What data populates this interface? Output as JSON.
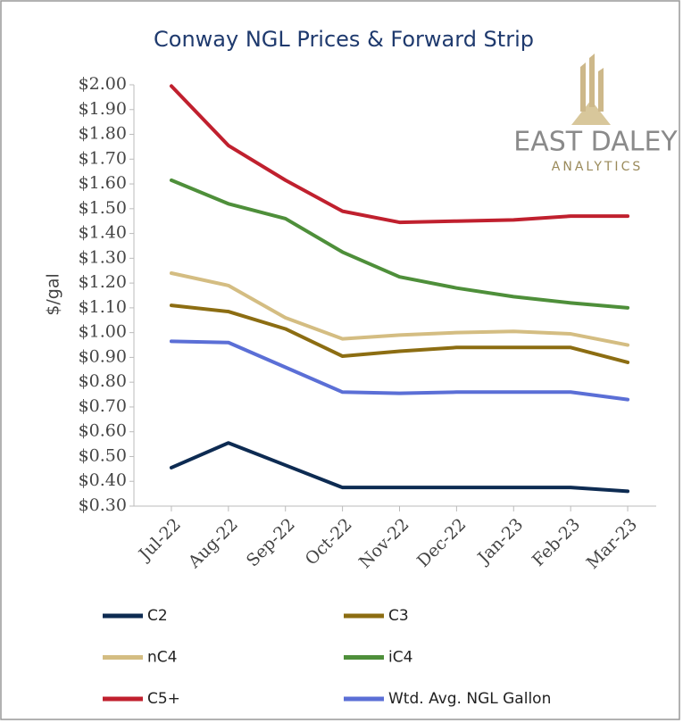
{
  "chart_data": {
    "type": "line",
    "title": "Conway NGL Prices & Forward Strip",
    "y_label": "$/gal",
    "logo": {
      "name": "EAST DALEY",
      "sub": "ANALYTICS"
    },
    "categories": [
      "Jul-22",
      "Aug-22",
      "Sep-22",
      "Oct-22",
      "Nov-22",
      "Dec-22",
      "Jan-23",
      "Feb-23",
      "Mar-23"
    ],
    "ylim": [
      0.3,
      2.0
    ],
    "yticks": [
      {
        "value": 0.3,
        "label": "$0.30"
      },
      {
        "value": 0.4,
        "label": "$0.40"
      },
      {
        "value": 0.5,
        "label": "$0.50"
      },
      {
        "value": 0.6,
        "label": "$0.60"
      },
      {
        "value": 0.7,
        "label": "$0.70"
      },
      {
        "value": 0.8,
        "label": "$0.80"
      },
      {
        "value": 0.9,
        "label": "$0.90"
      },
      {
        "value": 1.0,
        "label": "$1.00"
      },
      {
        "value": 1.1,
        "label": "$1.10"
      },
      {
        "value": 1.2,
        "label": "$1.20"
      },
      {
        "value": 1.3,
        "label": "$1.30"
      },
      {
        "value": 1.4,
        "label": "$1.40"
      },
      {
        "value": 1.5,
        "label": "$1.50"
      },
      {
        "value": 1.6,
        "label": "$1.60"
      },
      {
        "value": 1.7,
        "label": "$1.70"
      },
      {
        "value": 1.8,
        "label": "$1.80"
      },
      {
        "value": 1.9,
        "label": "$1.90"
      },
      {
        "value": 2.0,
        "label": "$2.00"
      }
    ],
    "grid": false,
    "series": [
      {
        "name": "C2",
        "color": "#0d2b52",
        "values": [
          0.455,
          0.555,
          0.465,
          0.375,
          0.375,
          0.375,
          0.375,
          0.375,
          0.36
        ]
      },
      {
        "name": "C3",
        "color": "#8c6d12",
        "values": [
          1.11,
          1.085,
          1.015,
          0.905,
          0.925,
          0.94,
          0.94,
          0.94,
          0.88
        ]
      },
      {
        "name": "nC4",
        "color": "#d4bd82",
        "values": [
          1.24,
          1.19,
          1.06,
          0.975,
          0.99,
          1.0,
          1.005,
          0.995,
          0.95
        ]
      },
      {
        "name": "iC4",
        "color": "#4e8f3a",
        "values": [
          1.615,
          1.52,
          1.46,
          1.325,
          1.225,
          1.18,
          1.145,
          1.12,
          1.1
        ]
      },
      {
        "name": "C5+",
        "color": "#c0202e",
        "values": [
          1.995,
          1.755,
          1.615,
          1.49,
          1.445,
          1.45,
          1.455,
          1.47,
          1.47
        ]
      },
      {
        "name": "Wtd. Avg. NGL Gallon",
        "color": "#5b6fd6",
        "values": [
          0.965,
          0.96,
          0.86,
          0.76,
          0.755,
          0.76,
          0.76,
          0.76,
          0.73
        ]
      }
    ]
  }
}
